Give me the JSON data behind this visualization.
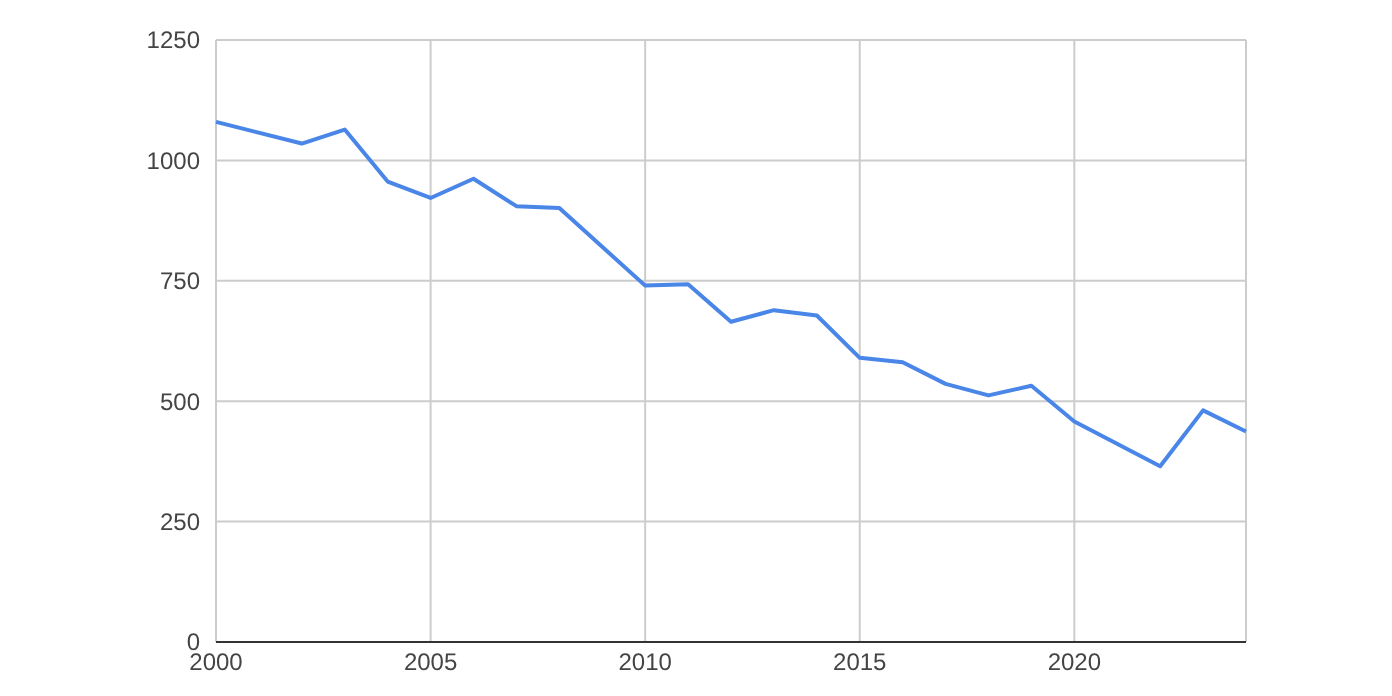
{
  "chart_data": {
    "type": "line",
    "x": [
      2000,
      2002,
      2003,
      2004,
      2005,
      2006,
      2007,
      2008,
      2010,
      2011,
      2012,
      2013,
      2014,
      2015,
      2016,
      2017,
      2018,
      2019,
      2020,
      2022,
      2023,
      2024
    ],
    "series": [
      {
        "color": "#4a86e8",
        "values": [
          1080,
          1035,
          1064,
          956,
          922,
          962,
          905,
          901,
          740,
          743,
          665,
          689,
          678,
          590,
          581,
          536,
          512,
          532,
          458,
          365,
          481,
          437
        ]
      }
    ],
    "xlim": [
      2000,
      2024
    ],
    "xticks": [
      2000,
      2005,
      2010,
      2015,
      2020
    ],
    "ylim": [
      0,
      1250
    ],
    "yticks": [
      0,
      250,
      500,
      750,
      1000,
      1250
    ],
    "grid": true,
    "marker": "none",
    "line_style": "solid"
  }
}
